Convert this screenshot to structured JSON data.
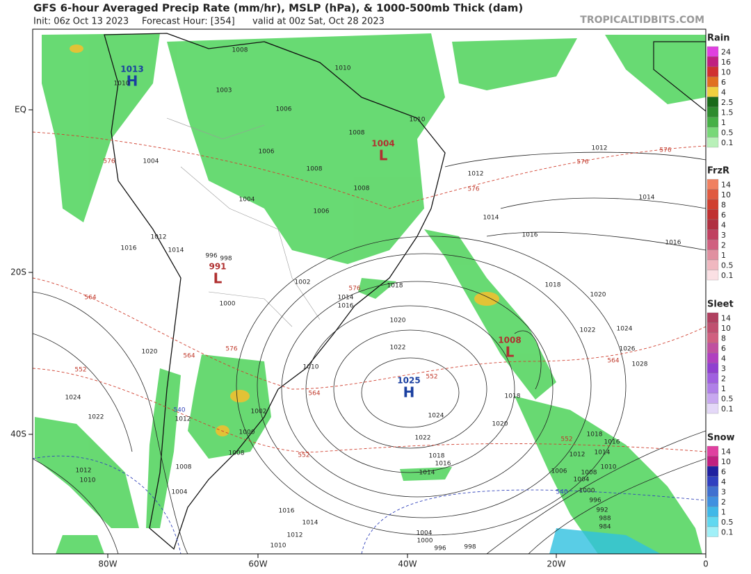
{
  "header": {
    "title": "GFS 6-hour Averaged Precip Rate (mm/hr), MSLP (hPa), & 1000-500mb Thick (dam)",
    "init": "Init: 06z Oct 13 2023",
    "forecast_hour": "Forecast Hour: [354]",
    "valid": "valid at 00z Sat, Oct 28 2023",
    "brand": "TROPICALTIDBITS.COM"
  },
  "axes": {
    "lon_labels": [
      "80W",
      "60W",
      "40W",
      "20W",
      "0"
    ],
    "lat_labels": [
      "EQ",
      "20S",
      "40S"
    ]
  },
  "legend": [
    {
      "title": "Rain",
      "labels": [
        "24",
        "16",
        "10",
        "6",
        "4",
        "2.5",
        "1.5",
        "1",
        "0.5",
        "0.1"
      ]
    },
    {
      "title": "FrzR",
      "labels": [
        "14",
        "10",
        "8",
        "6",
        "4",
        "3",
        "2",
        "1",
        "0.5",
        "0.1"
      ]
    },
    {
      "title": "Sleet",
      "labels": [
        "14",
        "10",
        "8",
        "6",
        "4",
        "3",
        "2",
        "1",
        "0.5",
        "0.1"
      ]
    },
    {
      "title": "Snow",
      "labels": [
        "14",
        "10",
        "6",
        "4",
        "3",
        "2",
        "1",
        "0.5",
        "0.1"
      ]
    }
  ],
  "centers": [
    {
      "value": "1025",
      "letter": "H"
    },
    {
      "value": "1004",
      "letter": "L"
    },
    {
      "value": "991",
      "letter": "L"
    },
    {
      "value": "1008",
      "letter": "L"
    },
    {
      "value": "1013",
      "letter": "H"
    }
  ],
  "isobar_labels": [
    "1010",
    "1008",
    "1006",
    "1003",
    "1008",
    "1006",
    "1004",
    "1008",
    "1006",
    "1004",
    "1008",
    "1010",
    "1012",
    "1012",
    "1014",
    "1014",
    "1016",
    "1016",
    "1016",
    "1012",
    "1014",
    "1018",
    "1020",
    "1018",
    "1002",
    "1014",
    "1016",
    "1020",
    "1022",
    "1022",
    "1024",
    "1026",
    "1028",
    "1020",
    "1010",
    "1024",
    "1022",
    "1024",
    "1018",
    "1020",
    "1022",
    "1018",
    "1016",
    "1014",
    "1012",
    "1010",
    "1008",
    "1006",
    "1018",
    "1016",
    "1014",
    "1002",
    "1000",
    "1008",
    "1008",
    "1012",
    "1010",
    "1004",
    "1016",
    "1014",
    "1012",
    "1010",
    "1004",
    "1000",
    "996",
    "998",
    "1004",
    "1000",
    "996",
    "992",
    "988",
    "984",
    "1000",
    "996",
    "998",
    "1012",
    "1010"
  ],
  "thickness_labels": [
    "576",
    "576",
    "576",
    "576",
    "576",
    "576",
    "564",
    "564",
    "564",
    "564",
    "552",
    "552",
    "552",
    "552"
  ],
  "thickness_cold_labels": [
    "540",
    "540"
  ]
}
